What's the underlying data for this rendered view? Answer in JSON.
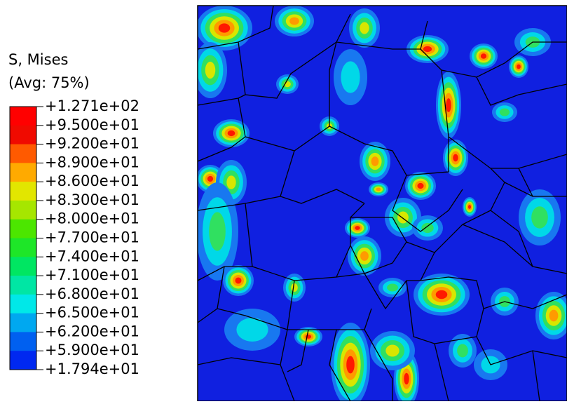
{
  "legend": {
    "title": "S, Mises",
    "subtitle": "(Avg: 75%)",
    "labels": [
      "+1.271e+02",
      "+9.500e+01",
      "+9.200e+01",
      "+8.900e+01",
      "+8.600e+01",
      "+8.300e+01",
      "+8.000e+01",
      "+7.700e+01",
      "+7.400e+01",
      "+7.100e+01",
      "+6.800e+01",
      "+6.500e+01",
      "+6.200e+01",
      "+5.900e+01",
      "+1.794e+01"
    ]
  }
}
